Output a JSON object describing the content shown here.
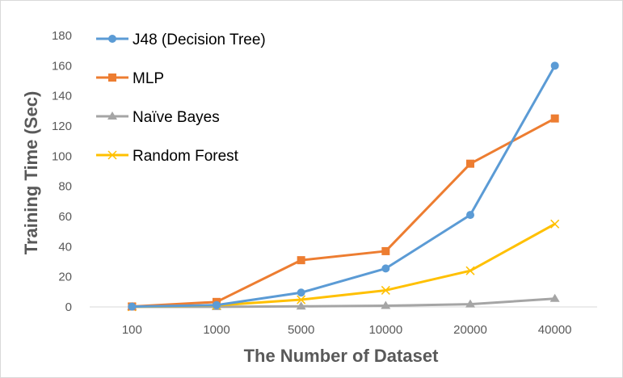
{
  "chart_data": {
    "type": "line",
    "title": "",
    "xlabel": "The Number of Dataset",
    "ylabel": "Training Time (Sec)",
    "categories": [
      "100",
      "1000",
      "5000",
      "10000",
      "20000",
      "40000"
    ],
    "ylim": [
      0,
      180
    ],
    "yticks": [
      0,
      20,
      40,
      60,
      80,
      100,
      120,
      140,
      160,
      180
    ],
    "grid": false,
    "legend_position": "top-left",
    "series": [
      {
        "name": "J48 (Decision Tree)",
        "color": "#5b9bd5",
        "marker": "circle",
        "values": [
          0.2,
          1.2,
          9.5,
          25.5,
          61,
          160
        ]
      },
      {
        "name": "MLP",
        "color": "#ed7d31",
        "marker": "square",
        "values": [
          0.3,
          3.3,
          31,
          37,
          95,
          125
        ]
      },
      {
        "name": "Naïve Bayes",
        "color": "#a5a5a5",
        "marker": "triangle",
        "values": [
          0.05,
          0.1,
          0.4,
          0.8,
          1.8,
          5.5
        ]
      },
      {
        "name": "Random Forest",
        "color": "#ffc000",
        "marker": "x",
        "values": [
          0.1,
          1,
          4.8,
          11,
          24,
          55
        ]
      }
    ]
  }
}
